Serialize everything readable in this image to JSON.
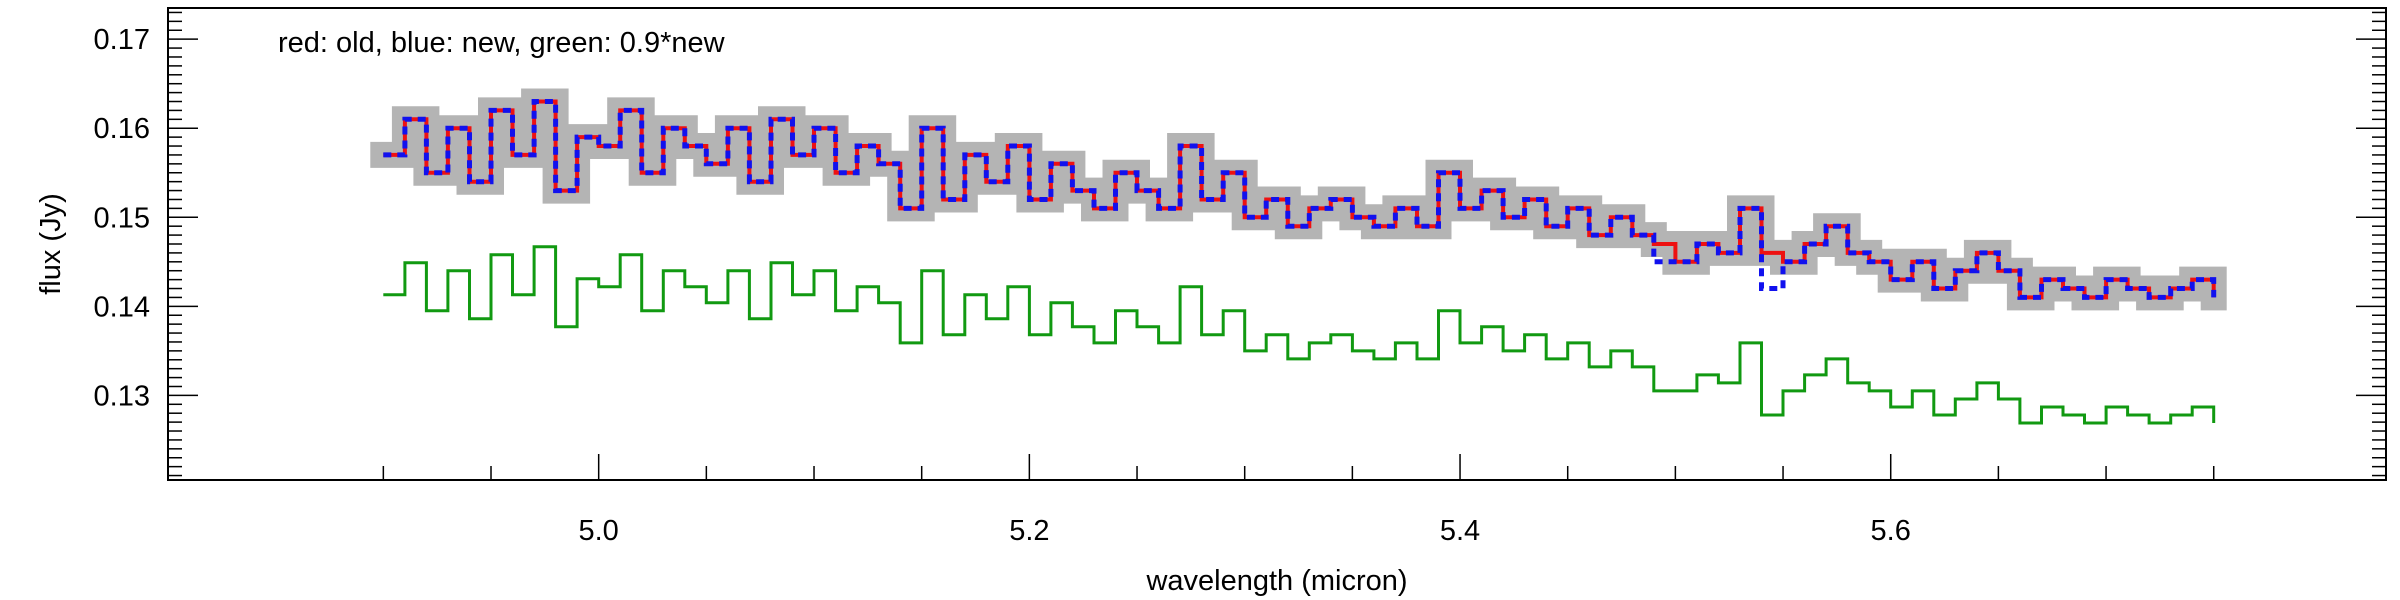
{
  "chart_data": {
    "type": "line",
    "title": "",
    "annotation": "red: old, blue: new, green: 0.9*new",
    "xlabel": "wavelength (micron)",
    "ylabel": "flux (Jy)",
    "xlim": [
      4.8,
      5.83
    ],
    "ylim": [
      0.1205,
      0.1735
    ],
    "xticks": [
      5.0,
      5.2,
      5.4,
      5.6
    ],
    "xtick_labels": [
      "5.0",
      "5.2",
      "5.4",
      "5.6"
    ],
    "yticks": [
      0.13,
      0.14,
      0.15,
      0.16,
      0.17
    ],
    "ytick_labels": [
      "0.13",
      "0.14",
      "0.15",
      "0.16",
      "0.17"
    ],
    "grid": false,
    "colors": {
      "old": "#ee1111",
      "new": "#1111ee",
      "scaled": "#119911",
      "uncertainty": "#b4b4b4"
    },
    "x": [
      4.9,
      4.91,
      4.92,
      4.93,
      4.94,
      4.95,
      4.96,
      4.97,
      4.98,
      4.99,
      5.0,
      5.01,
      5.02,
      5.03,
      5.04,
      5.05,
      5.06,
      5.07,
      5.08,
      5.09,
      5.1,
      5.11,
      5.12,
      5.13,
      5.14,
      5.15,
      5.16,
      5.17,
      5.18,
      5.19,
      5.2,
      5.21,
      5.22,
      5.23,
      5.24,
      5.25,
      5.26,
      5.27,
      5.28,
      5.29,
      5.3,
      5.31,
      5.32,
      5.33,
      5.34,
      5.35,
      5.36,
      5.37,
      5.38,
      5.39,
      5.4,
      5.41,
      5.42,
      5.43,
      5.44,
      5.45,
      5.46,
      5.47,
      5.48,
      5.49,
      5.5,
      5.51,
      5.52,
      5.53,
      5.54,
      5.55,
      5.56,
      5.57,
      5.58,
      5.59,
      5.6,
      5.61,
      5.62,
      5.63,
      5.64,
      5.65,
      5.66,
      5.67,
      5.68,
      5.69,
      5.7,
      5.71,
      5.72,
      5.73,
      5.74,
      5.75
    ],
    "series": [
      {
        "key": "uncertainty",
        "values": [
          0.157,
          0.161,
          0.155,
          0.16,
          0.154,
          0.162,
          0.157,
          0.163,
          0.153,
          0.159,
          0.158,
          0.162,
          0.155,
          0.16,
          0.158,
          0.156,
          0.16,
          0.154,
          0.161,
          0.157,
          0.16,
          0.155,
          0.158,
          0.156,
          0.151,
          0.16,
          0.152,
          0.157,
          0.154,
          0.158,
          0.152,
          0.156,
          0.153,
          0.151,
          0.155,
          0.153,
          0.151,
          0.158,
          0.152,
          0.155,
          0.15,
          0.152,
          0.149,
          0.151,
          0.152,
          0.15,
          0.149,
          0.151,
          0.149,
          0.155,
          0.151,
          0.153,
          0.15,
          0.152,
          0.149,
          0.151,
          0.148,
          0.15,
          0.148,
          0.147,
          0.145,
          0.147,
          0.146,
          0.151,
          0.146,
          0.145,
          0.147,
          0.149,
          0.146,
          0.145,
          0.143,
          0.145,
          0.142,
          0.144,
          0.146,
          0.144,
          0.141,
          0.143,
          0.142,
          0.141,
          0.143,
          0.142,
          0.141,
          0.142,
          0.143,
          0.141
        ]
      },
      {
        "key": "old",
        "values": [
          0.157,
          0.161,
          0.155,
          0.16,
          0.154,
          0.162,
          0.157,
          0.163,
          0.153,
          0.159,
          0.158,
          0.162,
          0.155,
          0.16,
          0.158,
          0.156,
          0.16,
          0.154,
          0.161,
          0.157,
          0.16,
          0.155,
          0.158,
          0.156,
          0.151,
          0.16,
          0.152,
          0.157,
          0.154,
          0.158,
          0.152,
          0.156,
          0.153,
          0.151,
          0.155,
          0.153,
          0.151,
          0.158,
          0.152,
          0.155,
          0.15,
          0.152,
          0.149,
          0.151,
          0.152,
          0.15,
          0.149,
          0.151,
          0.149,
          0.155,
          0.151,
          0.153,
          0.15,
          0.152,
          0.149,
          0.151,
          0.148,
          0.15,
          0.148,
          0.147,
          0.145,
          0.147,
          0.146,
          0.151,
          0.146,
          0.145,
          0.147,
          0.149,
          0.146,
          0.145,
          0.143,
          0.145,
          0.142,
          0.144,
          0.146,
          0.144,
          0.141,
          0.143,
          0.142,
          0.141,
          0.143,
          0.142,
          0.141,
          0.142,
          0.143,
          0.141
        ]
      },
      {
        "key": "new",
        "values": [
          0.157,
          0.161,
          0.155,
          0.16,
          0.154,
          0.162,
          0.157,
          0.163,
          0.153,
          0.159,
          0.158,
          0.162,
          0.155,
          0.16,
          0.158,
          0.156,
          0.16,
          0.154,
          0.161,
          0.157,
          0.16,
          0.155,
          0.158,
          0.156,
          0.151,
          0.16,
          0.152,
          0.157,
          0.154,
          0.158,
          0.152,
          0.156,
          0.153,
          0.151,
          0.155,
          0.153,
          0.151,
          0.158,
          0.152,
          0.155,
          0.15,
          0.152,
          0.149,
          0.151,
          0.152,
          0.15,
          0.149,
          0.151,
          0.149,
          0.155,
          0.151,
          0.153,
          0.15,
          0.152,
          0.149,
          0.151,
          0.148,
          0.15,
          0.148,
          0.145,
          0.145,
          0.147,
          0.146,
          0.151,
          0.142,
          0.145,
          0.147,
          0.149,
          0.146,
          0.145,
          0.143,
          0.145,
          0.142,
          0.144,
          0.146,
          0.144,
          0.141,
          0.143,
          0.142,
          0.141,
          0.143,
          0.142,
          0.141,
          0.142,
          0.143,
          0.141
        ]
      },
      {
        "key": "scaled",
        "values": [
          0.1413,
          0.1449,
          0.1395,
          0.144,
          0.1386,
          0.1458,
          0.1413,
          0.1467,
          0.1377,
          0.1431,
          0.1422,
          0.1458,
          0.1395,
          0.144,
          0.1422,
          0.1404,
          0.144,
          0.1386,
          0.1449,
          0.1413,
          0.144,
          0.1395,
          0.1422,
          0.1404,
          0.1359,
          0.144,
          0.1368,
          0.1413,
          0.1386,
          0.1422,
          0.1368,
          0.1404,
          0.1377,
          0.1359,
          0.1395,
          0.1377,
          0.1359,
          0.1422,
          0.1368,
          0.1395,
          0.135,
          0.1368,
          0.1341,
          0.1359,
          0.1368,
          0.135,
          0.1341,
          0.1359,
          0.1341,
          0.1395,
          0.1359,
          0.1377,
          0.135,
          0.1368,
          0.1341,
          0.1359,
          0.1332,
          0.135,
          0.1332,
          0.1305,
          0.1305,
          0.1323,
          0.1314,
          0.1359,
          0.1278,
          0.1305,
          0.1323,
          0.1341,
          0.1314,
          0.1305,
          0.1287,
          0.1305,
          0.1278,
          0.1296,
          0.1314,
          0.1296,
          0.1269,
          0.1287,
          0.1278,
          0.1269,
          0.1287,
          0.1278,
          0.1269,
          0.1278,
          0.1287,
          0.1269
        ]
      }
    ]
  }
}
